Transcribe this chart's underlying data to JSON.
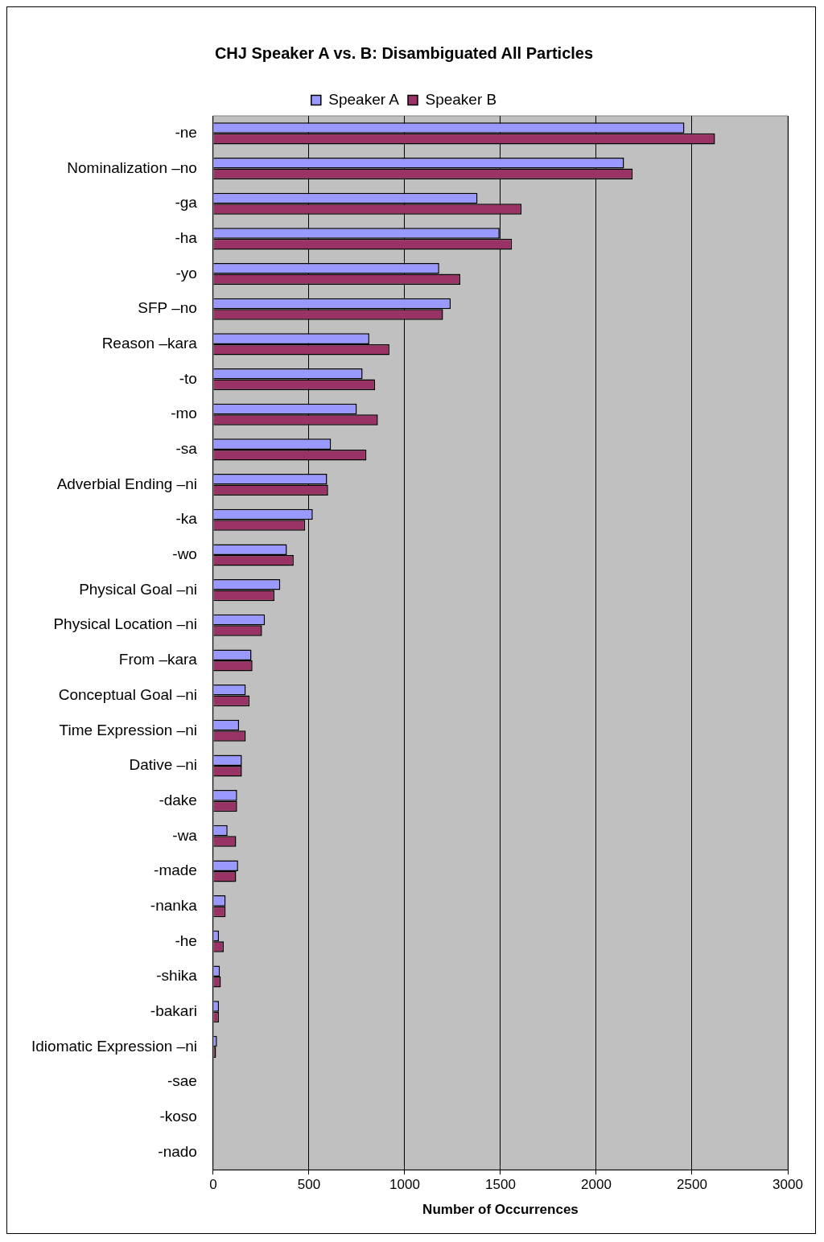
{
  "chart_data": {
    "type": "bar",
    "orientation": "horizontal",
    "title": "CHJ Speaker A vs. B: Disambiguated All Particles",
    "xlabel": "Number of Occurrences",
    "categories": [
      "-ne",
      "Nominalization –no",
      "-ga",
      "-ha",
      "-yo",
      "SFP –no",
      "Reason –kara",
      "-to",
      "-mo",
      "-sa",
      "Adverbial Ending –ni",
      "-ka",
      "-wo",
      "Physical Goal –ni",
      "Physical Location –ni",
      "From –kara",
      "Conceptual Goal –ni",
      "Time Expression –ni",
      "Dative –ni",
      "-dake",
      "-wa",
      "-made",
      "-nanka",
      "-he",
      "-shika",
      "-bakari",
      "Idiomatic Expression –ni",
      "-sae",
      "-koso",
      "-nado"
    ],
    "series": [
      {
        "name": "Speaker A",
        "color": "#9999ff",
        "values": [
          2460,
          2145,
          1380,
          1495,
          1180,
          1240,
          815,
          780,
          750,
          615,
          595,
          520,
          385,
          350,
          270,
          200,
          170,
          135,
          150,
          125,
          75,
          130,
          65,
          30,
          35,
          30,
          20,
          0,
          0,
          0
        ]
      },
      {
        "name": "Speaker B",
        "color": "#993366",
        "values": [
          2620,
          2190,
          1610,
          1560,
          1290,
          1200,
          920,
          845,
          860,
          800,
          600,
          480,
          420,
          320,
          255,
          205,
          190,
          170,
          150,
          125,
          120,
          120,
          65,
          55,
          40,
          30,
          15,
          0,
          0,
          0
        ]
      }
    ],
    "xlim": [
      0,
      3000
    ],
    "xticks": [
      0,
      500,
      1000,
      1500,
      2000,
      2500,
      3000
    ],
    "grid": "x",
    "legend": "top"
  }
}
